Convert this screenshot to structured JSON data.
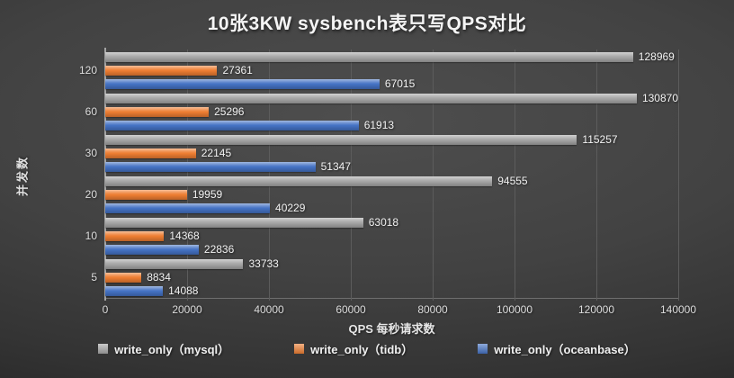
{
  "title": "10张3KW sysbench表只写QPS对比",
  "chart_data": {
    "type": "bar",
    "orientation": "horizontal",
    "title": "10张3KW sysbench表只写QPS对比",
    "xlabel": "QPS 每秒请求数",
    "ylabel": "并发数",
    "xlim": [
      0,
      140000
    ],
    "x_ticks": [
      "0",
      "20000",
      "40000",
      "60000",
      "80000",
      "100000",
      "120000",
      "140000"
    ],
    "grid": "vertical",
    "legend_position": "bottom",
    "categories": [
      "120",
      "60",
      "30",
      "20",
      "10",
      "5"
    ],
    "series": [
      {
        "name": "write_only（mysql）",
        "color": "#a6a6a6",
        "values": [
          128969,
          130870,
          115257,
          94555,
          63018,
          33733
        ]
      },
      {
        "name": "write_only（tidb）",
        "color": "#ed7d31",
        "values": [
          27361,
          25296,
          22145,
          19959,
          14368,
          8834
        ]
      },
      {
        "name": "write_only（oceanbase）",
        "color": "#4472c4",
        "values": [
          67015,
          61913,
          51347,
          40229,
          22836,
          14088
        ]
      }
    ]
  }
}
